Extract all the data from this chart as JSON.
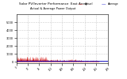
{
  "title": "Solar PV/Inverter Performance  East Array",
  "subtitle": "Actual & Average Power Output",
  "bg_color": "#ffffff",
  "plot_bg_color": "#ffffff",
  "grid_color": "#cccccc",
  "bar_color": "#cc0000",
  "avg_line_color": "#0000cc",
  "ylim": [
    -200,
    6000
  ],
  "num_points": 300,
  "avg_value": 120
}
